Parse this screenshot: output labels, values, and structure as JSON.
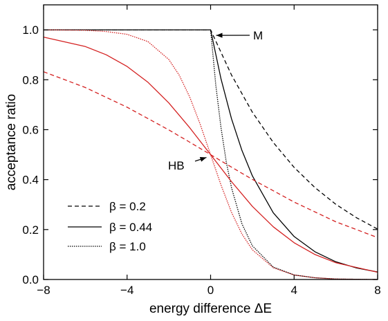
{
  "chart_data": {
    "type": "line",
    "title": "",
    "xlabel": "energy difference ΔE",
    "ylabel": "acceptance ratio",
    "xlim": [
      -8,
      8
    ],
    "ylim": [
      0,
      1.1
    ],
    "x_ticks": [
      -8,
      -4,
      0,
      4,
      8
    ],
    "x_tick_labels": [
      "−8",
      "−4",
      "0",
      "4",
      "8"
    ],
    "y_ticks": [
      0,
      0.2,
      0.4,
      0.6,
      0.8,
      1.0
    ],
    "y_tick_labels": [
      "0.0",
      "0.2",
      "0.4",
      "0.6",
      "0.8",
      "1.0"
    ],
    "grid": false,
    "legend_placement": "lower-left",
    "legend": [
      {
        "label": "β = 0.2",
        "dash": "dashed"
      },
      {
        "label": "β = 0.44",
        "dash": "solid"
      },
      {
        "label": "β = 1.0",
        "dash": "dotted"
      }
    ],
    "annotations": [
      {
        "text": "M",
        "points_to": [
          0,
          1.0
        ]
      },
      {
        "text": "HB",
        "points_to": [
          0,
          0.5
        ]
      }
    ],
    "colors": {
      "metropolis": "#000000",
      "heat_bath": "#d42020"
    },
    "series": [
      {
        "method": "M",
        "beta": 0.2,
        "dash": "dashed",
        "color": "#000000",
        "x": [
          -8,
          -6,
          -4,
          -2,
          0,
          1,
          2,
          3,
          4,
          5,
          6,
          7,
          8
        ],
        "y": [
          1.0,
          1.0,
          1.0,
          1.0,
          1.0,
          0.819,
          0.67,
          0.549,
          0.449,
          0.368,
          0.301,
          0.247,
          0.202
        ]
      },
      {
        "method": "M",
        "beta": 0.44,
        "dash": "solid",
        "color": "#000000",
        "x": [
          -8,
          -6,
          -4,
          -2,
          0,
          0.5,
          1,
          1.5,
          2,
          3,
          4,
          5,
          6,
          7,
          8
        ],
        "y": [
          1.0,
          1.0,
          1.0,
          1.0,
          1.0,
          0.803,
          0.644,
          0.517,
          0.415,
          0.267,
          0.172,
          0.111,
          0.071,
          0.046,
          0.03
        ]
      },
      {
        "method": "M",
        "beta": 1.0,
        "dash": "dotted",
        "color": "#000000",
        "x": [
          -8,
          -6,
          -4,
          -2,
          0,
          0.25,
          0.5,
          0.75,
          1,
          1.5,
          2,
          3,
          4,
          5,
          6,
          8
        ],
        "y": [
          1.0,
          1.0,
          1.0,
          1.0,
          1.0,
          0.779,
          0.607,
          0.472,
          0.368,
          0.223,
          0.135,
          0.05,
          0.018,
          0.007,
          0.002,
          0.0
        ]
      },
      {
        "method": "HB",
        "beta": 0.2,
        "dash": "dashed",
        "color": "#d42020",
        "x": [
          -8,
          -6,
          -4,
          -2,
          -1,
          0,
          1,
          2,
          4,
          6,
          8
        ],
        "y": [
          0.832,
          0.769,
          0.69,
          0.599,
          0.55,
          0.5,
          0.45,
          0.401,
          0.31,
          0.231,
          0.168
        ]
      },
      {
        "method": "HB",
        "beta": 0.44,
        "dash": "solid",
        "color": "#d42020",
        "x": [
          -8,
          -6,
          -5,
          -4,
          -3,
          -2,
          -1,
          0,
          1,
          2,
          3,
          4,
          5,
          6,
          8
        ],
        "y": [
          0.971,
          0.933,
          0.9,
          0.853,
          0.79,
          0.707,
          0.608,
          0.5,
          0.392,
          0.293,
          0.211,
          0.147,
          0.1,
          0.067,
          0.029
        ]
      },
      {
        "method": "HB",
        "beta": 1.0,
        "dash": "dotted",
        "color": "#d42020",
        "x": [
          -8,
          -6,
          -5,
          -4,
          -3,
          -2,
          -1.5,
          -1,
          -0.5,
          0,
          0.5,
          1,
          1.5,
          2,
          3,
          4,
          5,
          6,
          8
        ],
        "y": [
          1.0,
          0.998,
          0.993,
          0.982,
          0.953,
          0.881,
          0.818,
          0.731,
          0.622,
          0.5,
          0.378,
          0.269,
          0.182,
          0.119,
          0.047,
          0.018,
          0.007,
          0.002,
          0.0
        ]
      }
    ]
  }
}
